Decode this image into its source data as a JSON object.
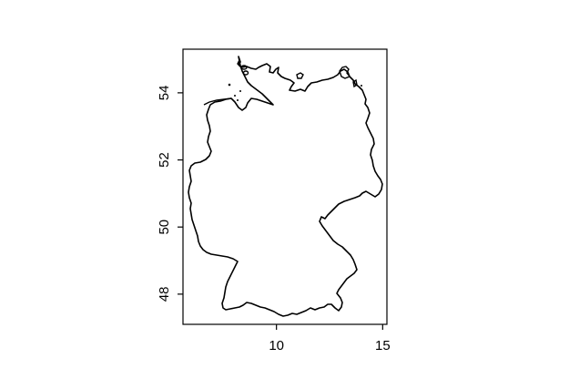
{
  "map": {
    "region": "Germany",
    "projection": "longitude-latitude",
    "x_axis": {
      "ticks": [
        10,
        15
      ],
      "range": [
        5.6,
        15.2
      ]
    },
    "y_axis": {
      "ticks": [
        48,
        50,
        52,
        54
      ],
      "range": [
        47.1,
        55.3
      ]
    },
    "outline_color": "#000000",
    "background": "#ffffff"
  }
}
